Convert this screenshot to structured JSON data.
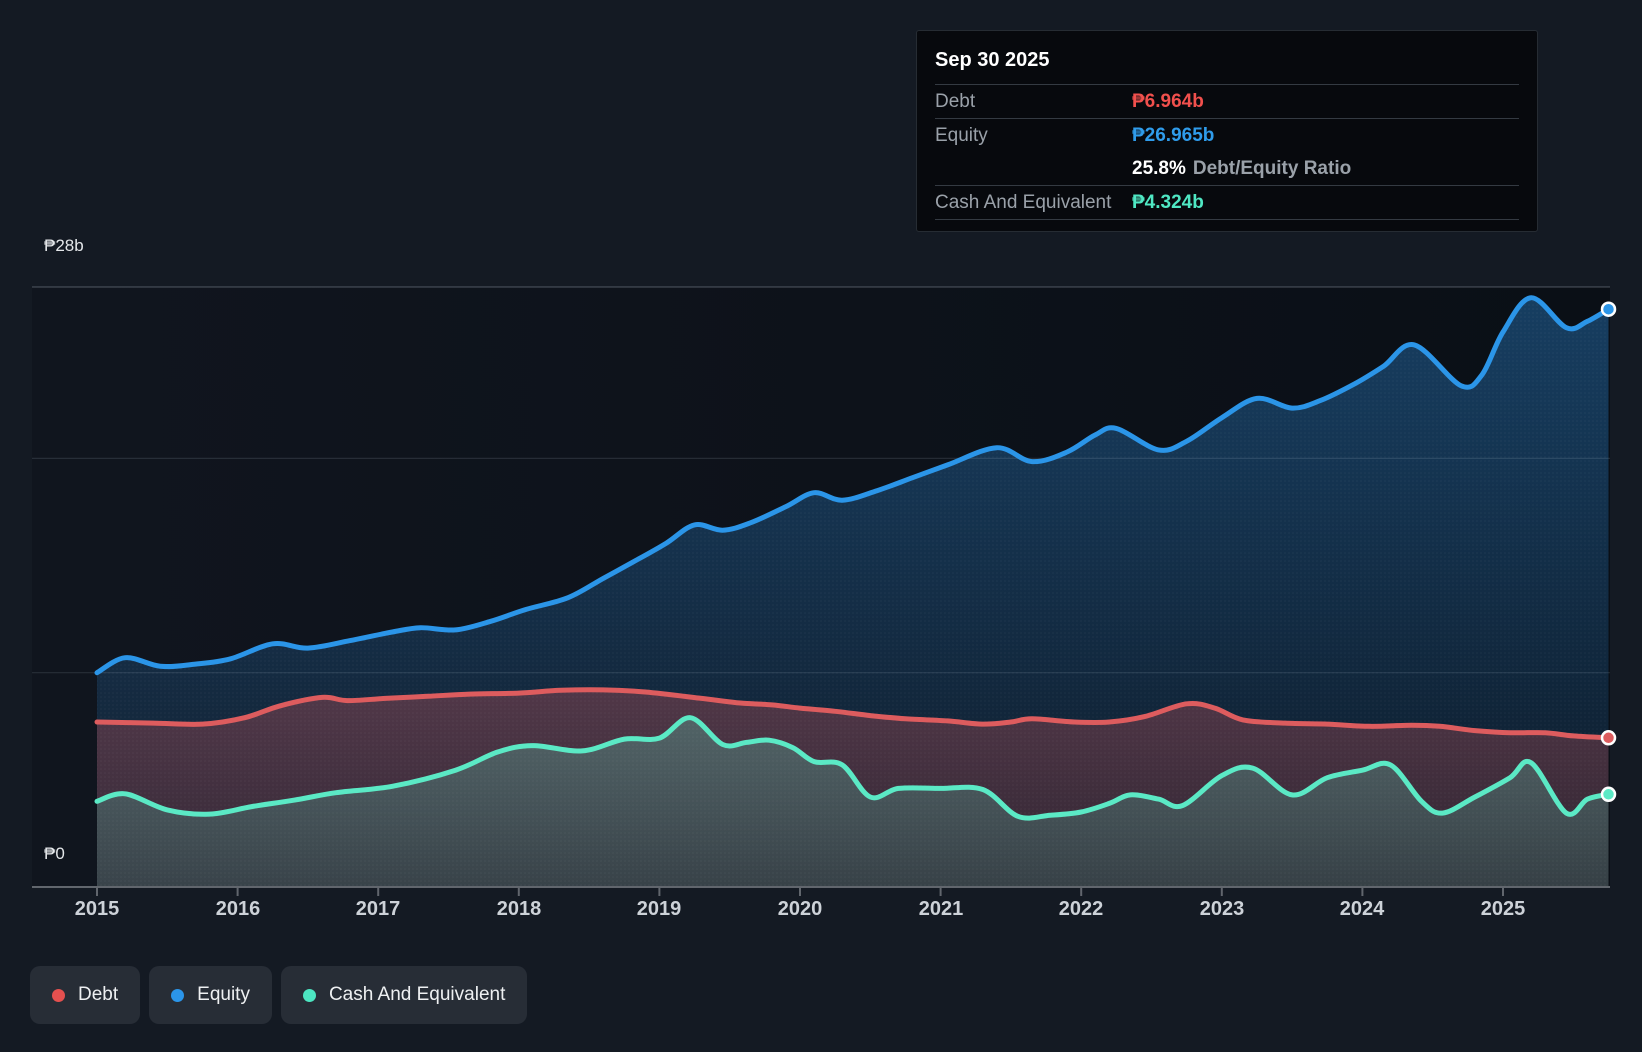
{
  "tooltip": {
    "date": "Sep 30 2025",
    "debt_label": "Debt",
    "debt_value": "₱6.964b",
    "debt_color": "#f1504d",
    "equity_label": "Equity",
    "equity_value": "₱26.965b",
    "equity_color": "#2f9ceb",
    "ratio_value": "25.8%",
    "ratio_label": "Debt/Equity Ratio",
    "cash_label": "Cash And Equivalent",
    "cash_value": "₱4.324b",
    "cash_color": "#4fe7c3"
  },
  "y_axis": {
    "top_label": "₱28b",
    "bottom_label": "₱0"
  },
  "x_axis": {
    "years": [
      "2015",
      "2016",
      "2017",
      "2018",
      "2019",
      "2020",
      "2021",
      "2022",
      "2023",
      "2024",
      "2025"
    ]
  },
  "legend": [
    {
      "label": "Debt",
      "color": "#e4504f"
    },
    {
      "label": "Equity",
      "color": "#2b95e9"
    },
    {
      "label": "Cash And Equivalent",
      "color": "#4ce5c1"
    }
  ],
  "chart_data": {
    "type": "area",
    "title": "",
    "xlabel": "",
    "ylabel": "",
    "x": {
      "min": 2015,
      "max": 2025.78,
      "ticks": [
        2015,
        2016,
        2017,
        2018,
        2019,
        2020,
        2021,
        2022,
        2023,
        2024,
        2025
      ]
    },
    "y": {
      "min": 0,
      "max": 28,
      "unit": "billions PHP",
      "gridline_values": [
        28,
        20,
        10,
        0
      ]
    },
    "legend_position": "bottom-left",
    "series": [
      {
        "name": "Equity",
        "color": "#2b95e8",
        "points": [
          [
            2015,
            10
          ],
          [
            2015.2,
            10.7
          ],
          [
            2015.45,
            10.3
          ],
          [
            2015.7,
            10.4
          ],
          [
            2015.95,
            10.65
          ],
          [
            2016.25,
            11.35
          ],
          [
            2016.5,
            11.15
          ],
          [
            2016.8,
            11.5
          ],
          [
            2017.1,
            11.9
          ],
          [
            2017.3,
            12.1
          ],
          [
            2017.55,
            12
          ],
          [
            2017.8,
            12.4
          ],
          [
            2018.05,
            12.95
          ],
          [
            2018.35,
            13.5
          ],
          [
            2018.6,
            14.4
          ],
          [
            2018.85,
            15.3
          ],
          [
            2019.05,
            16.05
          ],
          [
            2019.25,
            16.9
          ],
          [
            2019.45,
            16.65
          ],
          [
            2019.65,
            17
          ],
          [
            2019.9,
            17.75
          ],
          [
            2020.1,
            18.4
          ],
          [
            2020.3,
            18.05
          ],
          [
            2020.55,
            18.5
          ],
          [
            2020.8,
            19.1
          ],
          [
            2021.05,
            19.7
          ],
          [
            2021.4,
            20.5
          ],
          [
            2021.65,
            19.85
          ],
          [
            2021.9,
            20.3
          ],
          [
            2022.1,
            21.1
          ],
          [
            2022.25,
            21.4
          ],
          [
            2022.55,
            20.4
          ],
          [
            2022.75,
            20.8
          ],
          [
            2023,
            21.9
          ],
          [
            2023.25,
            22.8
          ],
          [
            2023.5,
            22.35
          ],
          [
            2023.7,
            22.7
          ],
          [
            2023.95,
            23.5
          ],
          [
            2024.15,
            24.3
          ],
          [
            2024.37,
            25.3
          ],
          [
            2024.7,
            23.4
          ],
          [
            2024.85,
            23.9
          ],
          [
            2025,
            25.9
          ],
          [
            2025.2,
            27.5
          ],
          [
            2025.45,
            26.1
          ],
          [
            2025.6,
            26.4
          ],
          [
            2025.75,
            26.965
          ]
        ]
      },
      {
        "name": "Debt",
        "color": "#dd5c5e",
        "points": [
          [
            2015,
            7.7
          ],
          [
            2015.4,
            7.65
          ],
          [
            2015.75,
            7.6
          ],
          [
            2016.05,
            7.9
          ],
          [
            2016.3,
            8.45
          ],
          [
            2016.6,
            8.85
          ],
          [
            2016.78,
            8.7
          ],
          [
            2017.05,
            8.8
          ],
          [
            2017.35,
            8.9
          ],
          [
            2017.65,
            9
          ],
          [
            2018,
            9.05
          ],
          [
            2018.3,
            9.18
          ],
          [
            2018.6,
            9.2
          ],
          [
            2018.9,
            9.1
          ],
          [
            2019.3,
            8.8
          ],
          [
            2019.55,
            8.6
          ],
          [
            2019.8,
            8.5
          ],
          [
            2020,
            8.35
          ],
          [
            2020.25,
            8.2
          ],
          [
            2020.5,
            8
          ],
          [
            2020.75,
            7.85
          ],
          [
            2021.05,
            7.75
          ],
          [
            2021.3,
            7.6
          ],
          [
            2021.5,
            7.7
          ],
          [
            2021.65,
            7.85
          ],
          [
            2021.95,
            7.7
          ],
          [
            2022.2,
            7.7
          ],
          [
            2022.45,
            7.95
          ],
          [
            2022.75,
            8.55
          ],
          [
            2022.95,
            8.35
          ],
          [
            2023.15,
            7.8
          ],
          [
            2023.45,
            7.65
          ],
          [
            2023.75,
            7.6
          ],
          [
            2024.05,
            7.5
          ],
          [
            2024.35,
            7.55
          ],
          [
            2024.55,
            7.5
          ],
          [
            2024.8,
            7.3
          ],
          [
            2025.05,
            7.2
          ],
          [
            2025.3,
            7.2
          ],
          [
            2025.5,
            7.05
          ],
          [
            2025.75,
            6.964
          ]
        ]
      },
      {
        "name": "Cash And Equivalent",
        "color": "#5be9c5",
        "points": [
          [
            2015,
            4
          ],
          [
            2015.2,
            4.35
          ],
          [
            2015.5,
            3.6
          ],
          [
            2015.8,
            3.4
          ],
          [
            2016.1,
            3.75
          ],
          [
            2016.4,
            4.05
          ],
          [
            2016.7,
            4.4
          ],
          [
            2017.1,
            4.7
          ],
          [
            2017.55,
            5.45
          ],
          [
            2017.85,
            6.3
          ],
          [
            2018.1,
            6.6
          ],
          [
            2018.45,
            6.35
          ],
          [
            2018.75,
            6.9
          ],
          [
            2019,
            6.95
          ],
          [
            2019.22,
            7.9
          ],
          [
            2019.45,
            6.65
          ],
          [
            2019.62,
            6.75
          ],
          [
            2019.78,
            6.85
          ],
          [
            2019.95,
            6.5
          ],
          [
            2020.1,
            5.85
          ],
          [
            2020.3,
            5.7
          ],
          [
            2020.5,
            4.2
          ],
          [
            2020.7,
            4.6
          ],
          [
            2021,
            4.6
          ],
          [
            2021.3,
            4.55
          ],
          [
            2021.55,
            3.3
          ],
          [
            2021.78,
            3.35
          ],
          [
            2022,
            3.5
          ],
          [
            2022.2,
            3.9
          ],
          [
            2022.35,
            4.3
          ],
          [
            2022.55,
            4.1
          ],
          [
            2022.72,
            3.8
          ],
          [
            2023,
            5.2
          ],
          [
            2023.22,
            5.55
          ],
          [
            2023.5,
            4.3
          ],
          [
            2023.75,
            5.1
          ],
          [
            2024,
            5.45
          ],
          [
            2024.2,
            5.7
          ],
          [
            2024.42,
            4
          ],
          [
            2024.57,
            3.45
          ],
          [
            2024.8,
            4.2
          ],
          [
            2025.05,
            5.1
          ],
          [
            2025.2,
            5.8
          ],
          [
            2025.45,
            3.45
          ],
          [
            2025.6,
            4.1
          ],
          [
            2025.75,
            4.324
          ]
        ]
      }
    ]
  }
}
